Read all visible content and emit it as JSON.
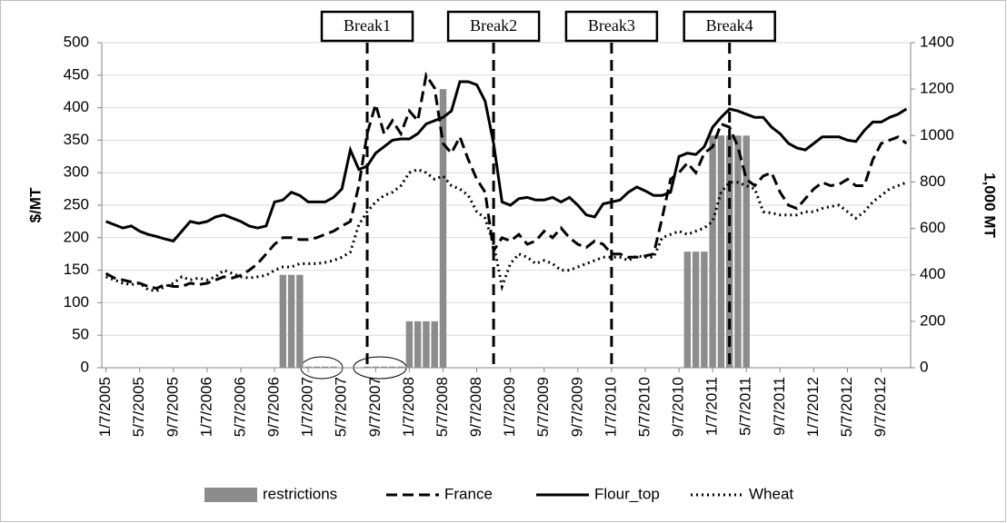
{
  "chart_data": {
    "type": "line",
    "y_label": "$/MT",
    "y2_label": "1,000 MT",
    "categories": [
      "1/7/2005",
      null,
      null,
      null,
      "5/7/2005",
      null,
      null,
      null,
      "9/7/2005",
      null,
      null,
      null,
      "1/7/2006",
      null,
      null,
      null,
      "5/7/2006",
      null,
      null,
      null,
      "9/7/2006",
      null,
      null,
      null,
      "1/7/2007",
      null,
      null,
      null,
      "5/7/2007",
      null,
      null,
      null,
      "9/7/2007",
      null,
      null,
      null,
      "1/7/2008",
      null,
      null,
      null,
      "5/7/2008",
      null,
      null,
      null,
      "9/7/2008",
      null,
      null,
      null,
      "1/7/2009",
      null,
      null,
      null,
      "5/7/2009",
      null,
      null,
      null,
      "9/7/2009",
      null,
      null,
      null,
      "1/7/2010",
      null,
      null,
      null,
      "5/7/2010",
      null,
      null,
      null,
      "9/7/2010",
      null,
      null,
      null,
      "1/7/2011",
      null,
      null,
      null,
      "5/7/2011",
      null,
      null,
      null,
      "9/7/2011",
      null,
      null,
      null,
      "1/7/2012",
      null,
      null,
      null,
      "5/7/2012",
      null,
      null,
      null,
      "9/7/2012",
      null,
      null,
      null
    ],
    "series": [
      {
        "name": "restrictions",
        "type": "bar",
        "axis": "y2",
        "color": "#8c8c8c",
        "values": [
          null,
          null,
          null,
          null,
          null,
          null,
          null,
          null,
          null,
          null,
          null,
          null,
          null,
          null,
          null,
          null,
          null,
          null,
          null,
          null,
          null,
          400,
          400,
          400,
          5,
          5,
          5,
          5,
          null,
          null,
          null,
          5,
          5,
          5,
          5,
          5,
          200,
          200,
          200,
          200,
          1200,
          null,
          null,
          null,
          null,
          null,
          null,
          null,
          null,
          null,
          null,
          null,
          null,
          null,
          null,
          null,
          null,
          null,
          null,
          null,
          null,
          null,
          null,
          null,
          null,
          null,
          null,
          null,
          null,
          500,
          500,
          500,
          1000,
          1000,
          1000,
          1000,
          1000,
          null,
          null,
          null,
          null,
          null,
          null,
          null,
          null,
          null,
          null,
          null,
          null,
          null,
          null,
          null,
          null,
          null,
          null,
          null
        ]
      },
      {
        "name": "France",
        "type": "line",
        "dash": "dashed",
        "color": "#000000",
        "values": [
          145,
          138,
          135,
          132,
          130,
          125,
          122,
          128,
          125,
          125,
          130,
          128,
          130,
          135,
          140,
          138,
          142,
          150,
          160,
          175,
          190,
          200,
          200,
          197,
          197,
          200,
          205,
          210,
          218,
          225,
          280,
          360,
          405,
          360,
          380,
          360,
          395,
          380,
          450,
          430,
          345,
          330,
          355,
          320,
          290,
          270,
          180,
          200,
          195,
          205,
          190,
          195,
          210,
          200,
          215,
          200,
          190,
          185,
          195,
          190,
          175,
          175,
          170,
          170,
          172,
          175,
          230,
          290,
          300,
          315,
          300,
          330,
          340,
          375,
          370,
          340,
          290,
          280,
          295,
          300,
          270,
          250,
          245,
          260,
          275,
          285,
          280,
          282,
          290,
          280,
          280,
          320,
          345,
          350,
          355,
          345
        ]
      },
      {
        "name": "Flour_top",
        "type": "line",
        "dash": "solid",
        "color": "#000000",
        "values": [
          225,
          220,
          215,
          218,
          210,
          205,
          202,
          198,
          195,
          210,
          225,
          222,
          225,
          232,
          235,
          230,
          225,
          218,
          215,
          218,
          255,
          258,
          270,
          265,
          255,
          255,
          255,
          262,
          275,
          335,
          305,
          310,
          330,
          340,
          350,
          352,
          352,
          360,
          375,
          380,
          385,
          395,
          440,
          440,
          435,
          410,
          345,
          255,
          250,
          260,
          262,
          258,
          258,
          262,
          255,
          262,
          250,
          235,
          232,
          252,
          255,
          258,
          270,
          278,
          272,
          265,
          265,
          270,
          325,
          330,
          328,
          340,
          370,
          385,
          398,
          395,
          390,
          385,
          385,
          370,
          360,
          345,
          338,
          335,
          345,
          355,
          355,
          355,
          350,
          348,
          365,
          378,
          378,
          385,
          390,
          398
        ]
      },
      {
        "name": "Wheat",
        "type": "line",
        "dash": "dotted",
        "color": "#000000",
        "values": [
          140,
          135,
          130,
          128,
          130,
          120,
          118,
          125,
          130,
          140,
          135,
          138,
          135,
          140,
          150,
          145,
          140,
          138,
          140,
          142,
          150,
          155,
          155,
          160,
          160,
          160,
          162,
          165,
          170,
          178,
          220,
          240,
          255,
          265,
          270,
          280,
          300,
          305,
          300,
          290,
          295,
          280,
          275,
          265,
          240,
          230,
          190,
          125,
          160,
          175,
          170,
          160,
          165,
          160,
          150,
          150,
          155,
          160,
          165,
          170,
          170,
          170,
          165,
          172,
          170,
          170,
          200,
          205,
          210,
          205,
          210,
          215,
          225,
          270,
          285,
          285,
          280,
          275,
          240,
          238,
          235,
          235,
          235,
          240,
          240,
          245,
          248,
          250,
          240,
          230,
          240,
          255,
          265,
          275,
          280,
          285
        ]
      }
    ],
    "annotations": [
      {
        "text": "Break1",
        "x": 31
      },
      {
        "text": "Break2",
        "x": 46
      },
      {
        "text": "Break3",
        "x": 60
      },
      {
        "text": "Break4",
        "x": 74
      }
    ],
    "ylim": [
      0,
      500
    ],
    "yticks": [
      0,
      50,
      100,
      150,
      200,
      250,
      300,
      350,
      400,
      450,
      500
    ],
    "y2lim": [
      0,
      1400
    ],
    "y2ticks": [
      0,
      200,
      400,
      600,
      800,
      1000,
      1200,
      1400
    ],
    "grid": true,
    "legend": "bottom"
  }
}
